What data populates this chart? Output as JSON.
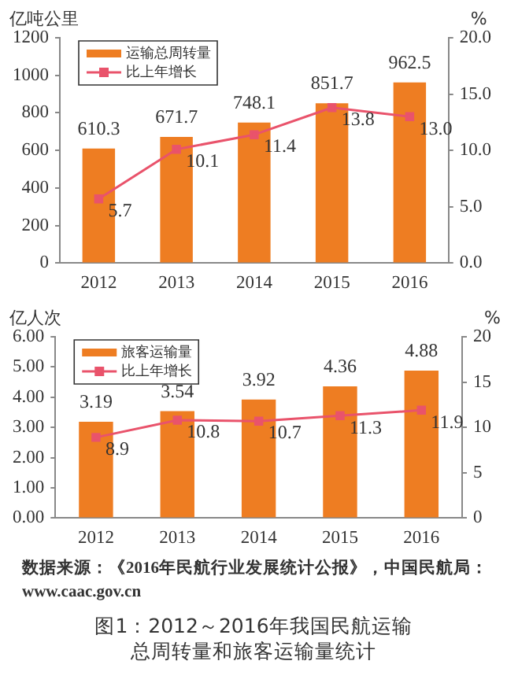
{
  "chart_data": [
    {
      "type": "bar",
      "categories": [
        "2012",
        "2013",
        "2014",
        "2015",
        "2016"
      ],
      "ylabel": "亿吨公里",
      "y2label": "%",
      "series": [
        {
          "name": "运输总周转量",
          "color": "#ee7d22",
          "values": [
            610.3,
            671.7,
            748.1,
            851.7,
            962.5
          ],
          "value_labels": [
            "610.3",
            "671.7",
            "748.1",
            "851.7",
            "962.5"
          ]
        },
        {
          "name": "比上年增长",
          "type": "line",
          "axis": "y2",
          "color": "#e9536b",
          "values": [
            5.7,
            10.1,
            11.4,
            13.8,
            13.0
          ],
          "value_labels": [
            "5.7",
            "10.1",
            "11.4",
            "13.8",
            "13.0"
          ]
        }
      ],
      "ylim": [
        0,
        1200
      ],
      "yticks": [
        0,
        200,
        400,
        600,
        800,
        1000,
        1200
      ],
      "y2lim": [
        0,
        20
      ],
      "y2ticks": [
        {
          "value": 0,
          "label": "0.0"
        },
        {
          "value": 5,
          "label": "5.0"
        },
        {
          "value": 10,
          "label": "10.0"
        },
        {
          "value": 15,
          "label": "15.0"
        },
        {
          "value": 20,
          "label": "20.0"
        }
      ],
      "grid": false,
      "legend": "top left",
      "marker": "square",
      "line_style": "solid"
    },
    {
      "type": "bar",
      "categories": [
        "2012",
        "2013",
        "2014",
        "2015",
        "2016"
      ],
      "ylabel": "亿人次",
      "y2label": "%",
      "series": [
        {
          "name": "旅客运输量",
          "color": "#ee7d22",
          "values": [
            3.19,
            3.54,
            3.92,
            4.36,
            4.88
          ],
          "value_labels": [
            "3.19",
            "3.54",
            "3.92",
            "4.36",
            "4.88"
          ]
        },
        {
          "name": "比上年增长",
          "type": "line",
          "axis": "y2",
          "color": "#e9536b",
          "values": [
            8.9,
            10.8,
            10.7,
            11.3,
            11.9
          ],
          "value_labels": [
            "8.9",
            "10.8",
            "10.7",
            "11.3",
            "11.9"
          ]
        }
      ],
      "ylim": [
        0,
        6
      ],
      "yticks": [
        {
          "value": 0,
          "label": "0.00"
        },
        {
          "value": 1,
          "label": "1.00"
        },
        {
          "value": 2,
          "label": "2.00"
        },
        {
          "value": 3,
          "label": "3.00"
        },
        {
          "value": 4,
          "label": "4.00"
        },
        {
          "value": 5,
          "label": "5.00"
        },
        {
          "value": 6,
          "label": "6.00"
        }
      ],
      "y2lim": [
        0,
        20
      ],
      "y2ticks": [
        0,
        5,
        10,
        15,
        20
      ],
      "grid": false,
      "legend": "top left",
      "marker": "square",
      "line_style": "solid",
      "annotations": [
        "数据来源：《2016年民航行业发展统计公报》，中国民航局：www.caac.gov.cn",
        "图1：2012～2016年我国民航运输总周转量和旅客运输量统计"
      ]
    }
  ]
}
